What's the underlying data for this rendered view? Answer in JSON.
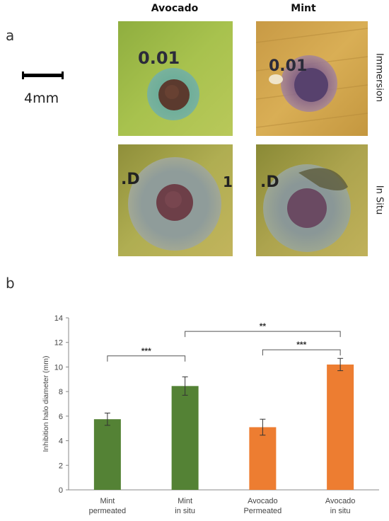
{
  "panel_a": {
    "letter": "a",
    "columns": [
      "Avocado",
      "Mint"
    ],
    "rows": [
      "Immersion",
      "In Situ"
    ],
    "scale_label": "4mm",
    "handwriting": {
      "avocado_immersion": "0.01",
      "mint_immersion": "0.01",
      "avocado_insitu": ".D",
      "mint_insitu": ".D",
      "avocado_insitu_edge": "1."
    }
  },
  "panel_b": {
    "letter": "b"
  },
  "colors": {
    "mint": "#548235",
    "avocado": "#ED7D31"
  },
  "chart_data": {
    "type": "bar",
    "ylabel": "Inhibition halo diameter (mm)",
    "xlabel": "",
    "ylim": [
      0,
      14
    ],
    "yticks": [
      0,
      2,
      4,
      6,
      8,
      10,
      12,
      14
    ],
    "grid": false,
    "categories": [
      [
        "Mint",
        "permeated"
      ],
      [
        "Mint",
        "in situ"
      ],
      [
        "Avocado",
        "Permeated"
      ],
      [
        "Avocado",
        "in situ"
      ]
    ],
    "values": [
      5.75,
      8.45,
      5.1,
      10.2
    ],
    "errors": [
      0.5,
      0.75,
      0.65,
      0.5
    ],
    "bar_colors": [
      "#548235",
      "#548235",
      "#ED7D31",
      "#ED7D31"
    ],
    "significance": [
      {
        "from": 0,
        "to": 1,
        "label": "***",
        "y": 10.9
      },
      {
        "from": 1,
        "to": 3,
        "label": "**",
        "y": 12.9
      },
      {
        "from": 2,
        "to": 3,
        "label": "***",
        "y": 11.4
      }
    ]
  }
}
